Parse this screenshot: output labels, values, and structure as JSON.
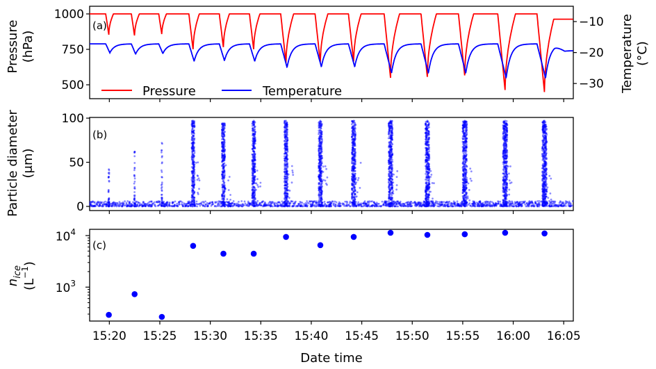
{
  "chart_data": {
    "type": "line+scatter",
    "x_label": "Date time",
    "x_unit": "minutes after 15:00",
    "xlim": [
      18.05,
      65.95
    ],
    "x_ticks": [
      {
        "t": 20,
        "label": "15:20"
      },
      {
        "t": 25,
        "label": "15:25"
      },
      {
        "t": 30,
        "label": "15:30"
      },
      {
        "t": 35,
        "label": "15:35"
      },
      {
        "t": 40,
        "label": "15:40"
      },
      {
        "t": 45,
        "label": "15:45"
      },
      {
        "t": 50,
        "label": "15:50"
      },
      {
        "t": 55,
        "label": "15:55"
      },
      {
        "t": 60,
        "label": "16:00"
      },
      {
        "t": 65,
        "label": "16:05"
      }
    ],
    "expansions": [
      {
        "t": 19.95,
        "pressure_min": 853,
        "temperature_min": -20.1,
        "max_diameter": 42,
        "n_ice": 290
      },
      {
        "t": 22.5,
        "pressure_min": 843,
        "temperature_min": -20.5,
        "max_diameter": 62,
        "n_ice": 730
      },
      {
        "t": 25.2,
        "pressure_min": 853,
        "temperature_min": -20.3,
        "max_diameter": 72,
        "n_ice": 265
      },
      {
        "t": 28.3,
        "pressure_min": 745,
        "temperature_min": -22.8,
        "max_diameter": 97,
        "n_ice": 6300
      },
      {
        "t": 31.3,
        "pressure_min": 760,
        "temperature_min": -22.6,
        "max_diameter": 94,
        "n_ice": 4450
      },
      {
        "t": 34.3,
        "pressure_min": 745,
        "temperature_min": -22.8,
        "max_diameter": 97,
        "n_ice": 4450
      },
      {
        "t": 37.5,
        "pressure_min": 647,
        "temperature_min": -24.8,
        "max_diameter": 97,
        "n_ice": 9400
      },
      {
        "t": 40.9,
        "pressure_min": 652,
        "temperature_min": -24.6,
        "max_diameter": 97,
        "n_ice": 6500
      },
      {
        "t": 44.2,
        "pressure_min": 657,
        "temperature_min": -24.6,
        "max_diameter": 97,
        "n_ice": 9400
      },
      {
        "t": 47.85,
        "pressure_min": 549,
        "temperature_min": -26.6,
        "max_diameter": 97,
        "n_ice": 11300
      },
      {
        "t": 51.5,
        "pressure_min": 549,
        "temperature_min": -26.6,
        "max_diameter": 97,
        "n_ice": 10300
      },
      {
        "t": 55.2,
        "pressure_min": 559,
        "temperature_min": -26.6,
        "max_diameter": 97,
        "n_ice": 10600
      },
      {
        "t": 59.2,
        "pressure_min": 456,
        "temperature_min": -28.2,
        "max_diameter": 97,
        "n_ice": 11300
      },
      {
        "t": 63.1,
        "pressure_min": 441,
        "temperature_min": -28.2,
        "max_diameter": 97,
        "n_ice": 11000
      }
    ],
    "panels": [
      {
        "id": "a",
        "panel_label": "(a)",
        "type": "line",
        "ylabel": [
          "Pressure",
          "(hPa)"
        ],
        "yticks": [
          500,
          750,
          1000
        ],
        "ylim": [
          402,
          1054
        ],
        "y2label": [
          "Temperature",
          "(°C)"
        ],
        "y2ticks": [
          -30,
          -20,
          -10
        ],
        "y2lim": [
          -34.9,
          -5.05
        ],
        "legend_position": "lower-left",
        "series": [
          {
            "name": "Pressure",
            "color": "#ff0000",
            "baseline": 1000,
            "final_value": 963
          },
          {
            "name": "Temperature",
            "color": "#0000ff",
            "baseline": -17.2,
            "final_value": -19.4
          }
        ]
      },
      {
        "id": "b",
        "panel_label": "(b)",
        "type": "scatter",
        "ylabel": [
          "Particle diameter",
          "(μm)"
        ],
        "yticks": [
          0,
          50,
          100
        ],
        "ylim": [
          -4.7,
          100.8
        ],
        "color": "#0000ff",
        "background_diameter_range": [
          0,
          6
        ]
      },
      {
        "id": "c",
        "panel_label": "(c)",
        "type": "scatter",
        "yscale": "log",
        "ylabel_main": "n",
        "ylabel_sub": "ice",
        "ylabel_unit": "(L",
        "ylabel_unit_sup": "−1",
        "ylabel_unit_end": ")",
        "yticks": [
          {
            "v": 1000,
            "base": "10",
            "exp": "3"
          },
          {
            "v": 10000,
            "base": "10",
            "exp": "4"
          }
        ],
        "ylim": [
          220,
          13200
        ],
        "color": "#0000ff"
      }
    ]
  }
}
